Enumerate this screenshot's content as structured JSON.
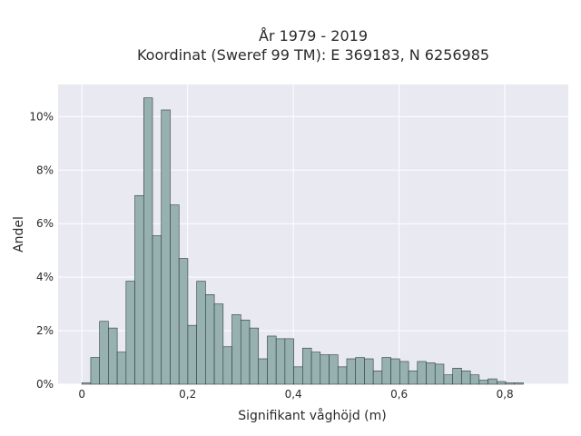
{
  "chart_data": {
    "type": "bar",
    "title_line1": "År 1979 - 2019",
    "title_line2": "Koordinat (Sweref 99 TM): E 369183, N 6256985",
    "xlabel": "Signifikant våghöjd (m)",
    "ylabel": "Andel",
    "xlim": [
      -0.045,
      0.92
    ],
    "ylim": [
      0,
      11.2
    ],
    "bin_width": 0.0167,
    "x_start": 0.0,
    "x_ticks": [
      0,
      0.2,
      0.4,
      0.6,
      0.8
    ],
    "x_tick_labels": [
      "0",
      "0,2",
      "0,4",
      "0,6",
      "0,8"
    ],
    "y_ticks": [
      0,
      2,
      4,
      6,
      8,
      10
    ],
    "y_tick_labels": [
      "0%",
      "2%",
      "4%",
      "6%",
      "8%",
      "10%"
    ],
    "grid": true,
    "bar_color": "#97b1b1",
    "bar_edge_color": "#2f3b3b",
    "plot_background": "#e9e9f2",
    "values": [
      0.05,
      1.0,
      2.35,
      2.1,
      1.2,
      3.85,
      7.05,
      10.7,
      5.55,
      10.25,
      6.7,
      4.7,
      2.2,
      3.85,
      3.35,
      3.0,
      1.4,
      2.6,
      2.4,
      2.1,
      0.95,
      1.8,
      1.7,
      1.7,
      0.65,
      1.35,
      1.2,
      1.1,
      1.1,
      0.65,
      0.95,
      1.0,
      0.95,
      0.5,
      1.0,
      0.95,
      0.85,
      0.5,
      0.85,
      0.8,
      0.75,
      0.35,
      0.6,
      0.5,
      0.35,
      0.15,
      0.2,
      0.1,
      0.05,
      0.05
    ]
  }
}
